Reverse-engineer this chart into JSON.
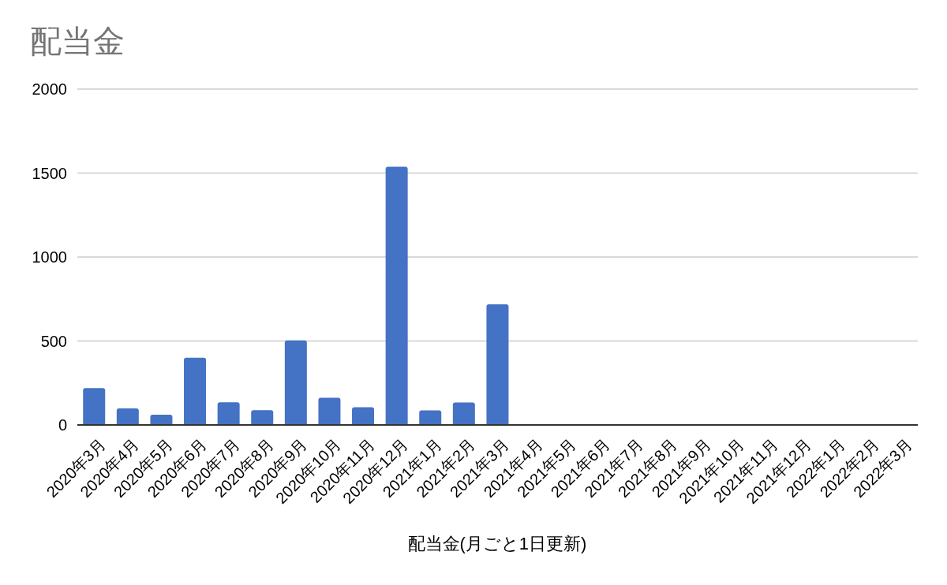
{
  "chart_data": {
    "type": "bar",
    "title": "配当金",
    "xlabel": "配当金(月ごと1日更新)",
    "categories": [
      "2020年3月",
      "2020年4月",
      "2020年5月",
      "2020年6月",
      "2020年7月",
      "2020年8月",
      "2020年9月",
      "2020年10月",
      "2020年11月",
      "2020年12月",
      "2021年1月",
      "2021年2月",
      "2021年3月",
      "2021年4月",
      "2021年5月",
      "2021年6月",
      "2021年7月",
      "2021年8月",
      "2021年9月",
      "2021年10月",
      "2021年11月",
      "2021年12月",
      "2022年1月",
      "2022年2月",
      "2022年3月"
    ],
    "values": [
      220,
      99,
      61,
      400,
      135,
      88,
      503,
      162,
      106,
      1537,
      87,
      134,
      718,
      null,
      null,
      null,
      null,
      null,
      null,
      null,
      null,
      null,
      null,
      null,
      null
    ],
    "color": "#4472c4",
    "ylim": [
      0,
      2000
    ],
    "yticks": [
      0,
      500,
      1000,
      1500,
      2000
    ],
    "grid": "y"
  }
}
